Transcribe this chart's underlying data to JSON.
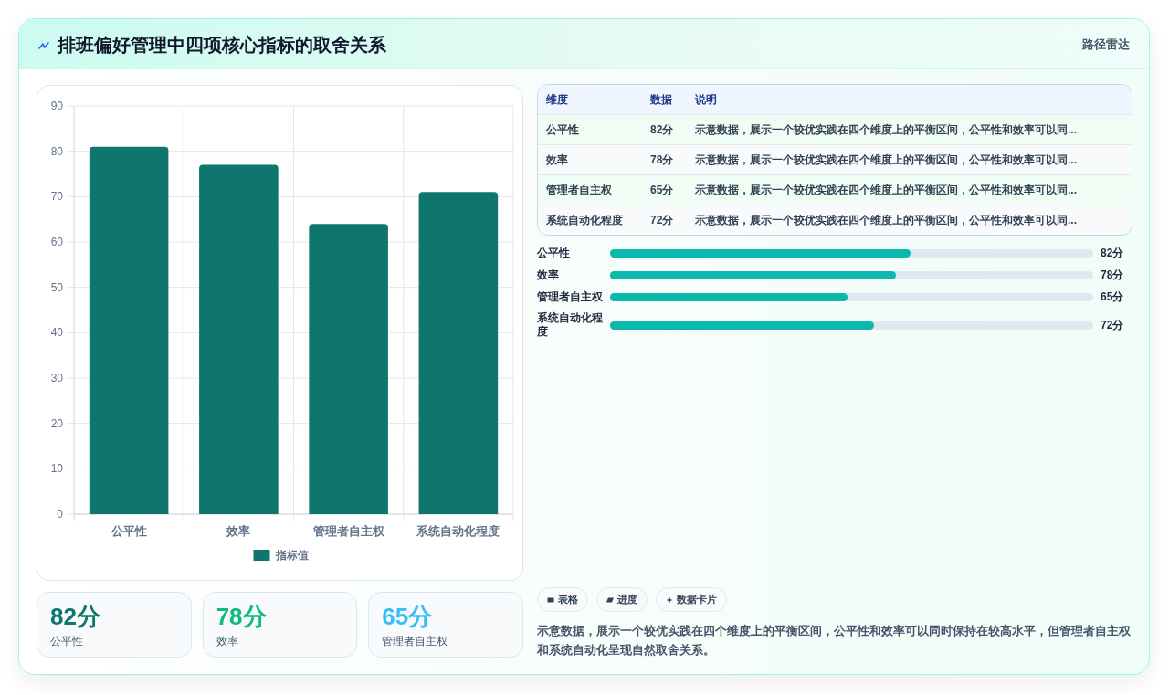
{
  "chart_data": [
    {
      "type": "other",
      "title": "排班偏好管理中四项核心指标的取舍关系",
      "subtitle": "路径雷达"
    },
    {
      "type": "bar",
      "categories": [
        "公平性",
        "效率",
        "管理者自主权",
        "系统自动化程度"
      ],
      "series": [
        {
          "name": "指标值",
          "color": "#0f766e",
          "values": [
            81,
            77,
            64,
            71
          ]
        }
      ],
      "ylim": [
        0,
        90
      ],
      "yticks": [
        0,
        10,
        20,
        30,
        40,
        50,
        60,
        70,
        80,
        90
      ],
      "grid": true,
      "legend": "bottom"
    },
    {
      "type": "other",
      "annotations": [
        "维度",
        "数据",
        "说明",
        "公平性",
        "82分",
        "示意数据，展示一个较优实践在四个维度上的平衡区间，公平性和效率可以同...",
        "效率",
        "78分",
        "示意数据，展示一个较优实践在四个维度上的平衡区间，公平性和效率可以同...",
        "管理者自主权",
        "65分",
        "示意数据，展示一个较优实践在四个维度上的平衡区间，公平性和效率可以同...",
        "系统自动化程度",
        "72分",
        "示意数据，展示一个较优实践在四个维度上的平衡区间，公平性和效率可以同..."
      ]
    },
    {
      "type": "bar",
      "orientation": "horizontal",
      "categories": [
        "公平性",
        "效率",
        "管理者自主权",
        "系统自动化程度"
      ],
      "values": [
        82,
        78,
        65,
        72
      ],
      "value_labels": [
        "82分",
        "78分",
        "65分",
        "72分"
      ],
      "color": "#0cb7ab",
      "xlim": [
        0,
        132
      ],
      "tick_labels": "y"
    },
    {
      "type": "other",
      "annotations": [
        "82分",
        "公平性",
        "78分",
        "效率",
        "65分",
        "管理者自主权"
      ],
      "colors": [
        "#0f766e",
        "#10b981",
        "#38bdf8"
      ]
    },
    {
      "type": "other",
      "annotations": [
        "表格",
        "进度",
        "数据卡片",
        "示意数据，展示一个较优实践在四个维度上的平衡区间，公平性和效率可以同时保持在较高水平，但管理者自主权和系统自动化呈现自然取舍关系。"
      ]
    }
  ]
}
